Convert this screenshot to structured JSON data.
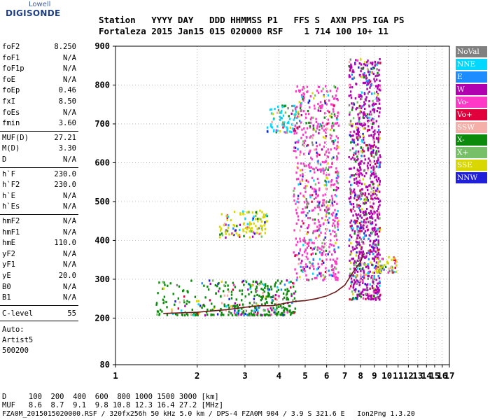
{
  "logo": {
    "line1": "Lowell",
    "line2": "DIGISONDE"
  },
  "header": {
    "row1": "Station   YYYY DAY   DDD HHMMSS P1   FFS S  AXN PPS IGA PS",
    "row2": "Fortaleza 2015 Jan15 015 020000 RSF    1 714 100 10+ 11"
  },
  "params": {
    "group1": [
      {
        "k": "foF2",
        "v": "8.250"
      },
      {
        "k": "foF1",
        "v": "N/A"
      },
      {
        "k": "foF1p",
        "v": "N/A"
      },
      {
        "k": "foE",
        "v": "N/A"
      },
      {
        "k": "foEp",
        "v": "0.46"
      },
      {
        "k": "fxI",
        "v": "8.50"
      },
      {
        "k": "foEs",
        "v": "N/A"
      },
      {
        "k": "fmin",
        "v": "3.60"
      }
    ],
    "group2": [
      {
        "k": "MUF(D)",
        "v": "27.21"
      },
      {
        "k": "M(D)",
        "v": "3.30"
      },
      {
        "k": "D",
        "v": "N/A"
      }
    ],
    "group3": [
      {
        "k": "h`F",
        "v": "230.0"
      },
      {
        "k": "h`F2",
        "v": "230.0"
      },
      {
        "k": "h`E",
        "v": "N/A"
      },
      {
        "k": "h`Es",
        "v": "N/A"
      }
    ],
    "group4": [
      {
        "k": "hmF2",
        "v": "N/A"
      },
      {
        "k": "hmF1",
        "v": "N/A"
      },
      {
        "k": "hmE",
        "v": "110.0"
      },
      {
        "k": "yF2",
        "v": "N/A"
      },
      {
        "k": "yF1",
        "v": "N/A"
      },
      {
        "k": "yE",
        "v": "20.0"
      },
      {
        "k": "B0",
        "v": "N/A"
      },
      {
        "k": "B1",
        "v": "N/A"
      }
    ],
    "clevel": {
      "k": "C-level",
      "v": "55"
    },
    "auto": [
      "Auto:",
      "Artist5",
      "500200"
    ]
  },
  "legend": [
    {
      "label": "NoVal",
      "color": "#808080"
    },
    {
      "label": "NNE",
      "color": "#00d8ff"
    },
    {
      "label": "E",
      "color": "#1d8cff"
    },
    {
      "label": "W",
      "color": "#b000b0"
    },
    {
      "label": "Vo-",
      "color": "#ff38c8"
    },
    {
      "label": "Vo+",
      "color": "#e0003c"
    },
    {
      "label": "SSW",
      "color": "#f4b0a8"
    },
    {
      "label": "X-",
      "color": "#0c8a0c"
    },
    {
      "label": "X+",
      "color": "#78c068"
    },
    {
      "label": "SSE",
      "color": "#d8d800"
    },
    {
      "label": "NNW",
      "color": "#2020d8"
    }
  ],
  "footer": {
    "d_row": "D     100  200  400  600  800 1000 1500 3000 [km]",
    "muf_row": "MUF   8.6  8.7  9.1  9.8 10.8 12.3 16.4 27.2 [MHz]",
    "info_row": "FZA0M_2015015020000.RSF / 320fx256h 50 kHz 5.0 km / DPS-4 FZA0M 904 / 3.9 S 321.6 E   Ion2Png 1.3.20"
  },
  "chart_data": {
    "type": "scatter",
    "xlim": [
      1,
      17
    ],
    "ylim": [
      80,
      900
    ],
    "x_ticks": [
      1,
      2,
      3,
      4,
      5,
      6,
      7,
      8,
      9,
      10,
      11,
      12,
      13,
      14,
      15,
      16,
      17
    ],
    "y_ticks": [
      80,
      200,
      300,
      400,
      500,
      600,
      700,
      800,
      900
    ],
    "x_scale": "logarithmic (frequency, MHz)",
    "y_unit": "virtual height (km)",
    "grid": "dotted",
    "legend_position": "right",
    "trace_f2_frequency_mhz": [
      1.5,
      2.0,
      2.6,
      3.0,
      3.4,
      3.8,
      4.2,
      4.6,
      5.0,
      5.5,
      6.0,
      6.5,
      7.0,
      7.5,
      8.0,
      8.2
    ],
    "trace_f2_height_km": [
      212,
      215,
      222,
      228,
      232,
      232,
      238,
      243,
      245,
      250,
      257,
      268,
      285,
      318,
      345,
      365
    ],
    "echo_clusters": [
      {
        "f_range": [
          1.4,
          4.6
        ],
        "h_range": [
          210,
          300
        ],
        "dominant": "X-"
      },
      {
        "f_range": [
          2.4,
          3.6
        ],
        "h_range": [
          410,
          480
        ],
        "dominant": "SSE"
      },
      {
        "f_range": [
          3.6,
          4.7
        ],
        "h_range": [
          680,
          750
        ],
        "dominant": "NNE"
      },
      {
        "f_range": [
          4.5,
          6.6
        ],
        "h_range": [
          300,
          800
        ],
        "dominant": "Vo-"
      },
      {
        "f_range": [
          7.2,
          9.4
        ],
        "h_range": [
          250,
          870
        ],
        "dominant": "W"
      },
      {
        "f_range": [
          9.0,
          10.8
        ],
        "h_range": [
          320,
          360
        ],
        "dominant": "SSE"
      }
    ]
  }
}
